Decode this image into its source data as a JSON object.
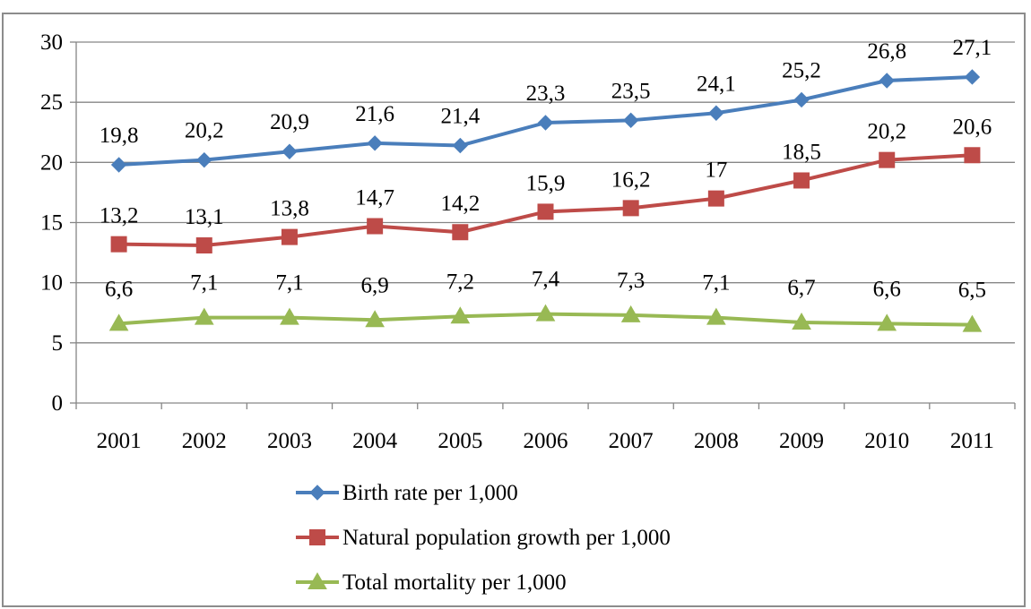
{
  "chart_data": {
    "type": "line",
    "title": "",
    "xlabel": "",
    "ylabel": "",
    "x": [
      "2001",
      "2002",
      "2003",
      "2004",
      "2005",
      "2006",
      "2007",
      "2008",
      "2009",
      "2010",
      "2011"
    ],
    "ylim": [
      0,
      30
    ],
    "yticks": [
      0,
      5,
      10,
      15,
      20,
      25,
      30
    ],
    "grid": "horizontal",
    "legend_position": "bottom",
    "series": [
      {
        "name": "Birth rate per 1,000",
        "color": "#4a7ebb",
        "marker": "diamond",
        "values": [
          19.8,
          20.2,
          20.9,
          21.6,
          21.4,
          23.3,
          23.5,
          24.1,
          25.2,
          26.8,
          27.1
        ],
        "labels": [
          "19,8",
          "20,2",
          "20,9",
          "21,6",
          "21,4",
          "23,3",
          "23,5",
          "24,1",
          "25,2",
          "26,8",
          "27,1"
        ]
      },
      {
        "name": "Natural population growth per 1,000",
        "color": "#be4b48",
        "marker": "square",
        "values": [
          13.2,
          13.1,
          13.8,
          14.7,
          14.2,
          15.9,
          16.2,
          17,
          18.5,
          20.2,
          20.6
        ],
        "labels": [
          "13,2",
          "13,1",
          "13,8",
          "14,7",
          "14,2",
          "15,9",
          "16,2",
          "17",
          "18,5",
          "20,2",
          "20,6"
        ]
      },
      {
        "name": "Total mortality per 1,000",
        "color": "#98b954",
        "marker": "triangle",
        "values": [
          6.6,
          7.1,
          7.1,
          6.9,
          7.2,
          7.4,
          7.3,
          7.1,
          6.7,
          6.6,
          6.5
        ],
        "labels": [
          "6,6",
          "7,1",
          "7,1",
          "6,9",
          "7,2",
          "7,4",
          "7,3",
          "7,1",
          "6,7",
          "6,6",
          "6,5"
        ]
      }
    ]
  }
}
